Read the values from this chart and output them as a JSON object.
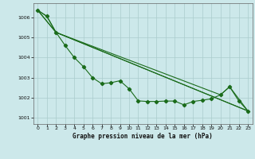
{
  "title": "Graphe pression niveau de la mer (hPa)",
  "bg_color": "#cce8ea",
  "line_color": "#1a6b1a",
  "grid_color": "#aacccc",
  "xlim": [
    -0.5,
    23.5
  ],
  "ylim": [
    1000.7,
    1006.7
  ],
  "yticks": [
    1001,
    1002,
    1003,
    1004,
    1005,
    1006
  ],
  "xticks": [
    0,
    1,
    2,
    3,
    4,
    5,
    6,
    7,
    8,
    9,
    10,
    11,
    12,
    13,
    14,
    15,
    16,
    17,
    18,
    19,
    20,
    21,
    22,
    23
  ],
  "line1_x": [
    0,
    1,
    2,
    3,
    4,
    5,
    6,
    7,
    8,
    9,
    10,
    11,
    12,
    13,
    14,
    15,
    16,
    17,
    18,
    19,
    20,
    21,
    22,
    23
  ],
  "line1_y": [
    1006.35,
    1006.05,
    1005.25,
    1004.6,
    1004.0,
    1003.55,
    1003.0,
    1002.7,
    1002.75,
    1002.85,
    1002.45,
    1001.85,
    1001.82,
    1001.82,
    1001.84,
    1001.84,
    1001.65,
    1001.82,
    1001.88,
    1001.95,
    1002.15,
    1002.55,
    1001.85,
    1001.35
  ],
  "line2_x": [
    0,
    1,
    2,
    23
  ],
  "line2_y": [
    1006.35,
    1006.05,
    1005.25,
    1001.35
  ],
  "line3_x": [
    0,
    2,
    23
  ],
  "line3_y": [
    1006.35,
    1005.25,
    1001.35
  ],
  "line4_x": [
    0,
    2,
    20,
    21,
    23
  ],
  "line4_y": [
    1006.35,
    1005.25,
    1002.15,
    1002.55,
    1001.35
  ]
}
